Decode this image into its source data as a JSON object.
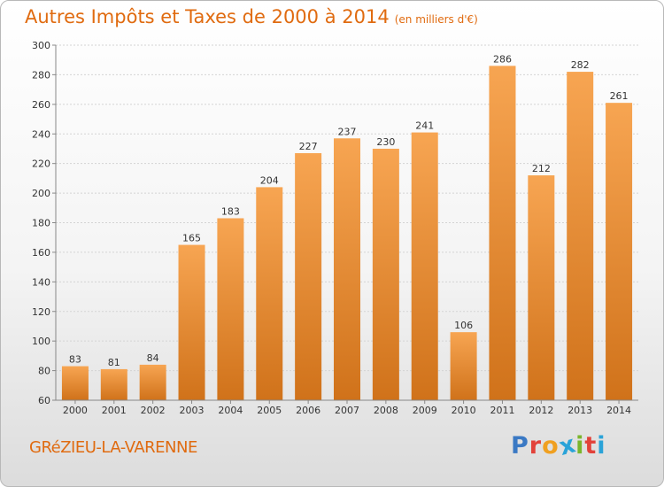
{
  "header": {
    "title": "Autres Impôts et Taxes de 2000 à 2014",
    "subtitle": "(en milliers d'€)"
  },
  "footer": {
    "commune": "GRéZIEU-LA-VARENNE",
    "brand": "Proxiti"
  },
  "colors": {
    "accent": "#e06b10",
    "bar_top": "#f7a552",
    "bar_bottom": "#d0721a",
    "brand_letters": [
      "#3a79c4",
      "#e2423a",
      "#f0a020",
      "#2aa3d8",
      "#7ab52c",
      "#e2423a",
      "#2aa3d8"
    ]
  },
  "chart_data": {
    "type": "bar",
    "title": "Autres Impôts et Taxes de 2000 à 2014",
    "subtitle": "(en milliers d'€)",
    "categories": [
      "2000",
      "2001",
      "2002",
      "2003",
      "2004",
      "2005",
      "2006",
      "2007",
      "2008",
      "2009",
      "2010",
      "2011",
      "2012",
      "2013",
      "2014"
    ],
    "values": [
      83,
      81,
      84,
      165,
      183,
      204,
      227,
      237,
      230,
      241,
      106,
      286,
      212,
      282,
      261
    ],
    "ylim": [
      60,
      300
    ],
    "yticks": [
      60,
      80,
      100,
      120,
      140,
      160,
      180,
      200,
      220,
      240,
      260,
      280,
      300
    ],
    "grid": true,
    "legend": "none"
  }
}
